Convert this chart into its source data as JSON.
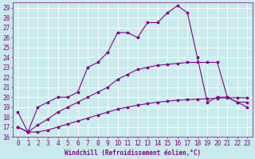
{
  "title": "",
  "xlabel": "Windchill (Refroidissement éolien,°C)",
  "background_color": "#c8eaea",
  "grid_color": "#ffffff",
  "line_color": "#880088",
  "xlim": [
    -0.5,
    23.5
  ],
  "ylim": [
    16,
    29.5
  ],
  "xticks": [
    0,
    1,
    2,
    3,
    4,
    5,
    6,
    7,
    8,
    9,
    10,
    11,
    12,
    13,
    14,
    15,
    16,
    17,
    18,
    19,
    20,
    21,
    22,
    23
  ],
  "yticks": [
    16,
    17,
    18,
    19,
    20,
    21,
    22,
    23,
    24,
    25,
    26,
    27,
    28,
    29
  ],
  "line1_x": [
    0,
    1,
    2,
    3,
    4,
    5,
    6,
    7,
    8,
    9,
    10,
    11,
    12,
    13,
    14,
    15,
    16,
    17,
    18,
    19,
    20,
    21,
    22,
    23
  ],
  "line1_y": [
    17.0,
    16.5,
    16.5,
    16.7,
    17.0,
    17.3,
    17.6,
    17.9,
    18.2,
    18.5,
    18.8,
    19.0,
    19.2,
    19.35,
    19.5,
    19.6,
    19.7,
    19.75,
    19.8,
    19.85,
    19.9,
    19.95,
    19.95,
    19.95
  ],
  "line2_x": [
    0,
    1,
    2,
    3,
    4,
    5,
    6,
    7,
    8,
    9,
    10,
    11,
    12,
    13,
    14,
    15,
    16,
    17,
    18,
    19,
    20,
    21,
    22,
    23
  ],
  "line2_y": [
    17.0,
    16.5,
    17.2,
    17.8,
    18.5,
    19.0,
    19.5,
    20.0,
    20.5,
    21.0,
    21.8,
    22.3,
    22.8,
    23.0,
    23.2,
    23.3,
    23.4,
    23.5,
    23.5,
    23.5,
    23.5,
    20.0,
    19.5,
    19.5
  ],
  "line3_x": [
    0,
    1,
    2,
    3,
    4,
    5,
    6,
    7,
    8,
    9,
    10,
    11,
    12,
    13,
    14,
    15,
    16,
    17,
    18,
    19,
    20,
    21,
    22,
    23
  ],
  "line3_y": [
    18.5,
    16.5,
    19.0,
    19.5,
    20.0,
    20.0,
    20.5,
    23.0,
    23.5,
    24.5,
    26.5,
    26.5,
    26.0,
    27.5,
    27.5,
    28.5,
    29.2,
    28.5,
    24.0,
    19.5,
    20.0,
    20.0,
    19.5,
    19.0
  ],
  "xlabel_fontsize": 5.5,
  "tick_fontsize": 5.5,
  "marker_size": 2.5,
  "line_width": 0.8
}
